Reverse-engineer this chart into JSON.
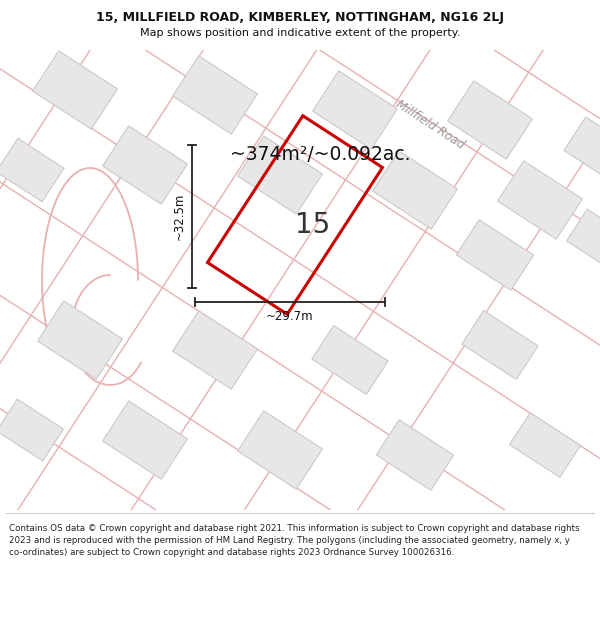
{
  "title_line1": "15, MILLFIELD ROAD, KIMBERLEY, NOTTINGHAM, NG16 2LJ",
  "title_line2": "Map shows position and indicative extent of the property.",
  "area_text": "~374m²/~0.092ac.",
  "property_number": "15",
  "dim_width": "~29.7m",
  "dim_height": "~32.5m",
  "road_label": "Millfield Road",
  "footer": "Contains OS data © Crown copyright and database right 2021. This information is subject to Crown copyright and database rights 2023 and is reproduced with the permission of HM Land Registry. The polygons (including the associated geometry, namely x, y co-ordinates) are subject to Crown copyright and database rights 2023 Ordnance Survey 100026316.",
  "map_bg": "#f8f6f6",
  "road_color": "#e8b0b0",
  "building_fill": "#e8e6e6",
  "building_edge": "#c8c4c4",
  "property_rect_color": "#cc0000",
  "title_bg": "#ffffff",
  "footer_bg": "#ffffff"
}
